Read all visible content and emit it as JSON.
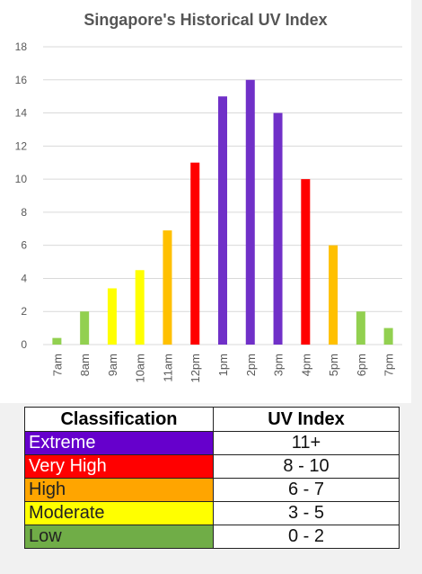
{
  "chart_data": {
    "type": "bar",
    "title": "Singapore's Historical UV Index",
    "categories": [
      "7am",
      "8am",
      "9am",
      "10am",
      "11am",
      "12pm",
      "1pm",
      "2pm",
      "3pm",
      "4pm",
      "5pm",
      "6pm",
      "7pm"
    ],
    "values": [
      0.4,
      2,
      3.4,
      4.5,
      6.9,
      11,
      15,
      16,
      14,
      10,
      6,
      2,
      1
    ],
    "ylim": [
      0,
      18
    ],
    "yticks": [
      0,
      2,
      4,
      6,
      8,
      10,
      12,
      14,
      16,
      18
    ],
    "grid": true,
    "xlabel": "",
    "ylabel": "",
    "bar_colors": [
      "#92d050",
      "#92d050",
      "#ffff00",
      "#ffff00",
      "#ffc000",
      "#ff0000",
      "#7030c8",
      "#7030c8",
      "#7030c8",
      "#ff0000",
      "#ffc000",
      "#92d050",
      "#92d050"
    ]
  },
  "legend_table": {
    "header": {
      "classification": "Classification",
      "uv_index": "UV Index"
    },
    "rows": [
      {
        "classification": "Extreme",
        "uv_index": "11+",
        "color": "#6600cc",
        "text_color": "#ffffff"
      },
      {
        "classification": "Very High",
        "uv_index": "8 - 10",
        "color": "#ff0000",
        "text_color": "#ffffff"
      },
      {
        "classification": "High",
        "uv_index": "6 - 7",
        "color": "#ffa500",
        "text_color": "#222222"
      },
      {
        "classification": "Moderate",
        "uv_index": "3 - 5",
        "color": "#ffff00",
        "text_color": "#222222"
      },
      {
        "classification": "Low",
        "uv_index": "0 - 2",
        "color": "#70ad47",
        "text_color": "#222222"
      }
    ]
  }
}
